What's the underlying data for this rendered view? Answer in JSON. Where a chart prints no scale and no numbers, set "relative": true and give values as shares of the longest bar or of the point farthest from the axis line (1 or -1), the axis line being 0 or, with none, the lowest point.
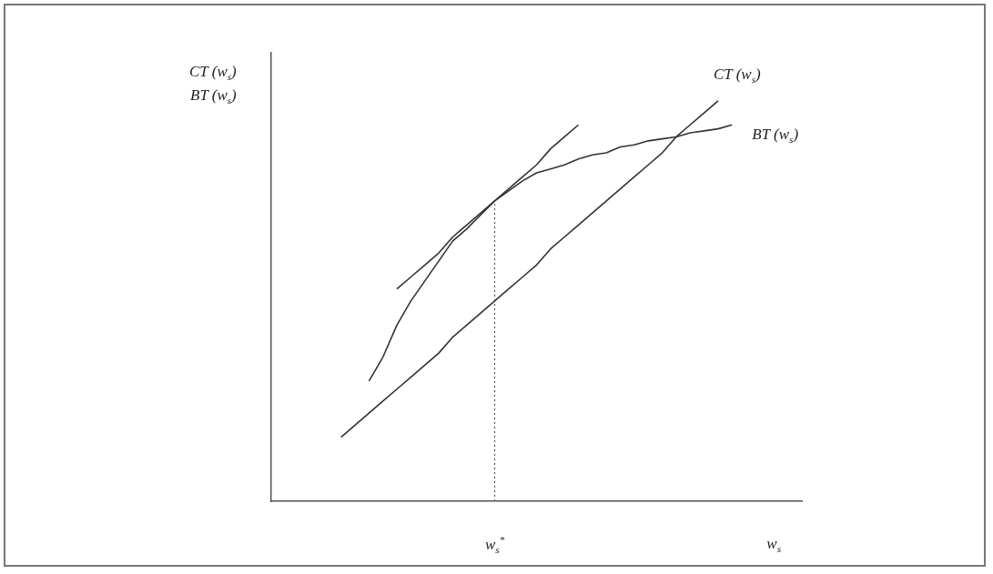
{
  "chart_data": {
    "type": "line",
    "relative": true,
    "tick_labels": "x",
    "grid": false,
    "legend": false,
    "marker": "none",
    "line_style": "solid",
    "categories": [
      null,
      null,
      null,
      null,
      null,
      null,
      null,
      null,
      null,
      null,
      null,
      null,
      null,
      null,
      null,
      null,
      "w$_{s}$$^{*}$",
      null,
      null,
      null,
      null,
      null,
      null,
      null,
      null,
      null,
      null,
      null,
      null,
      null,
      null,
      null,
      null,
      null,
      null,
      null,
      "w$_{s}$",
      null,
      null
    ],
    "annotations": [
      "CT (w$_{s}$)",
      "BT (w$_{s}$)"
    ],
    "ref_lines": [
      {
        "axis": "x",
        "value": "w$_{s}$$^{*}$",
        "line_style": "dotted",
        "color": "#555555"
      }
    ],
    "series": [
      {
        "name": "CT (w$_{s}$)",
        "color": "#333333",
        "values": [
          null,
          null,
          null,
          null,
          null,
          0.16,
          0.19,
          0.22,
          0.25,
          0.28,
          0.31,
          0.34,
          0.37,
          0.41,
          0.44,
          0.47,
          0.5,
          0.53,
          0.56,
          0.59,
          0.63,
          0.66,
          0.69,
          0.72,
          0.75,
          0.78,
          0.81,
          0.84,
          0.87,
          0.91,
          0.94,
          0.97,
          1.0,
          null,
          null,
          null,
          null,
          null,
          null
        ]
      },
      {
        "name": "BT (w$_{s}$)",
        "color": "#333333",
        "values": [
          null,
          null,
          null,
          null,
          null,
          null,
          null,
          0.3,
          0.36,
          0.44,
          0.5,
          0.55,
          0.6,
          0.65,
          0.68,
          0.715,
          0.75,
          0.775,
          0.8,
          0.82,
          0.83,
          0.84,
          0.855,
          0.865,
          0.87,
          0.885,
          0.89,
          0.9,
          0.905,
          0.91,
          0.92,
          0.925,
          0.93,
          0.94,
          null,
          null,
          null,
          null,
          null
        ]
      },
      {
        "color": "#333333",
        "values": [
          null,
          null,
          null,
          null,
          null,
          null,
          null,
          null,
          null,
          0.53,
          0.56,
          0.59,
          0.62,
          0.66,
          0.69,
          0.72,
          0.75,
          0.78,
          0.81,
          0.84,
          0.88,
          0.91,
          0.94,
          null,
          null,
          null,
          null,
          null,
          null,
          null,
          null,
          null,
          null,
          null,
          null,
          null,
          null,
          null,
          null
        ]
      }
    ]
  }
}
